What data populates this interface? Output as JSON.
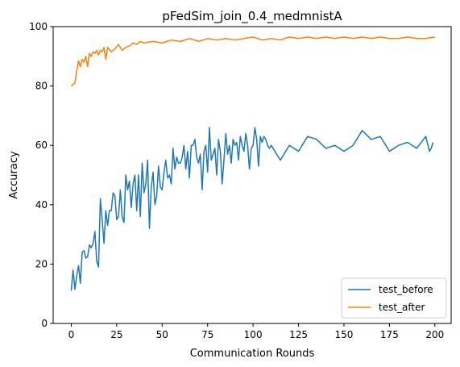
{
  "chart_data": {
    "type": "line",
    "title": "pFedSim_join_0.4_medmnistA",
    "xlabel": "Communication Rounds",
    "ylabel": "Accuracy",
    "xlim": [
      -9.95,
      208.95
    ],
    "ylim": [
      0,
      100
    ],
    "xticks": [
      0,
      25,
      50,
      75,
      100,
      125,
      150,
      175,
      200
    ],
    "yticks": [
      0,
      20,
      40,
      60,
      80,
      100
    ],
    "grid": false,
    "legend_position": "lower right",
    "series": [
      {
        "name": "test_before",
        "color": "#1f77b4",
        "x": [
          0,
          1,
          2,
          3,
          4,
          5,
          6,
          7,
          8,
          9,
          10,
          11,
          12,
          13,
          14,
          15,
          16,
          17,
          18,
          19,
          20,
          21,
          22,
          23,
          24,
          25,
          26,
          27,
          28,
          29,
          30,
          31,
          32,
          33,
          34,
          35,
          36,
          37,
          38,
          39,
          40,
          41,
          42,
          43,
          44,
          45,
          46,
          47,
          48,
          49,
          50,
          51,
          52,
          53,
          54,
          55,
          56,
          57,
          58,
          59,
          60,
          61,
          62,
          63,
          64,
          65,
          66,
          67,
          68,
          69,
          70,
          71,
          72,
          73,
          74,
          75,
          76,
          77,
          78,
          79,
          80,
          81,
          82,
          83,
          84,
          85,
          86,
          87,
          88,
          89,
          90,
          91,
          92,
          93,
          94,
          95,
          96,
          97,
          98,
          99,
          100,
          101,
          102,
          103,
          104,
          105,
          106,
          107,
          108,
          109,
          110,
          115,
          120,
          125,
          130,
          135,
          140,
          145,
          150,
          155,
          160,
          165,
          170,
          175,
          180,
          185,
          190,
          195,
          197,
          198,
          199
        ],
        "y": [
          11,
          18,
          11.5,
          16,
          19.5,
          13.5,
          24,
          24.5,
          22,
          22.5,
          26.5,
          25.5,
          27,
          31,
          21,
          19,
          42,
          35,
          27,
          38,
          33,
          38,
          38,
          44,
          43,
          35,
          36,
          45,
          36,
          34,
          50,
          45,
          48,
          39,
          47,
          50,
          38,
          50,
          36,
          54,
          44,
          47,
          55,
          32,
          46,
          51,
          40,
          43,
          53,
          46,
          45,
          51,
          55,
          49,
          50,
          47,
          59,
          52,
          56,
          54,
          54,
          56,
          60,
          52,
          58,
          49,
          60,
          60,
          62,
          56,
          54,
          57,
          45,
          58,
          60,
          51,
          66,
          55,
          57,
          59,
          50,
          62,
          58,
          47,
          55,
          64,
          57,
          60,
          54,
          62,
          60,
          61,
          55,
          63,
          60,
          58,
          64,
          60,
          52,
          59,
          60,
          66,
          62,
          53,
          63,
          61,
          63,
          62,
          60,
          59,
          60,
          55,
          60,
          58,
          63,
          62,
          59,
          60,
          58,
          60,
          65,
          62,
          63,
          58,
          60,
          61,
          59,
          63,
          58,
          59,
          61
        ]
      },
      {
        "name": "test_after",
        "color": "#ff7f0e",
        "x": [
          0,
          1,
          2,
          3,
          4,
          5,
          6,
          7,
          8,
          9,
          10,
          11,
          12,
          13,
          14,
          15,
          16,
          17,
          18,
          19,
          20,
          22,
          24,
          26,
          28,
          30,
          32,
          34,
          36,
          38,
          40,
          45,
          50,
          55,
          60,
          65,
          70,
          75,
          80,
          85,
          90,
          95,
          100,
          105,
          110,
          115,
          120,
          125,
          130,
          135,
          140,
          145,
          150,
          155,
          160,
          165,
          170,
          175,
          180,
          185,
          190,
          195,
          200
        ],
        "y": [
          80,
          80.5,
          81,
          85,
          88.5,
          86.5,
          89,
          88,
          90,
          86.5,
          91,
          90,
          91.5,
          91,
          92,
          90.5,
          92,
          91.5,
          93,
          89,
          93,
          91.5,
          92.5,
          94,
          92,
          93,
          93.5,
          94.5,
          94,
          95,
          94.5,
          95,
          94.5,
          95.5,
          95,
          96,
          95,
          96,
          95.5,
          96,
          95.5,
          96,
          96.5,
          95.5,
          96,
          95.5,
          96.5,
          96,
          96.5,
          96,
          96.5,
          96,
          96.5,
          96,
          96.5,
          96,
          96.5,
          96,
          96,
          96.5,
          96,
          96,
          96.5
        ]
      }
    ]
  }
}
